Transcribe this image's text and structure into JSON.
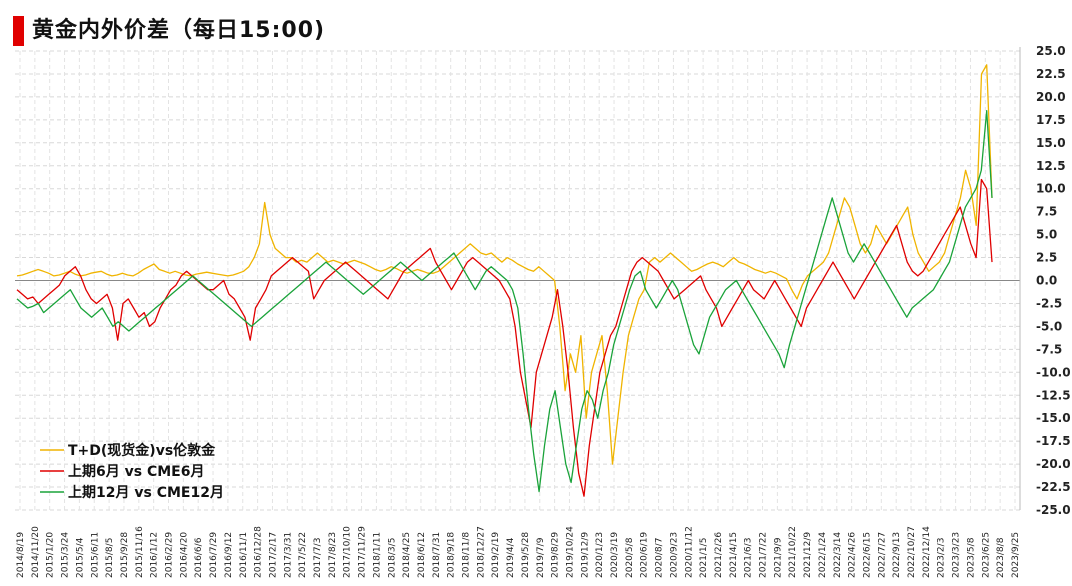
{
  "chart_data": {
    "type": "line",
    "title": "黄金内外价差（每日15:00)",
    "xlabel": "",
    "ylabel": "",
    "ylim": [
      -25,
      25
    ],
    "y_ticks": [
      "25.0",
      "22.5",
      "20.0",
      "17.5",
      "15.0",
      "12.5",
      "10.0",
      "7.5",
      "5.0",
      "2.5",
      "0.0",
      "-2.5",
      "-5.0",
      "-7.5",
      "-10.0",
      "-12.5",
      "-15.0",
      "-17.5",
      "-20.0",
      "-22.5",
      "-25.0"
    ],
    "x_ticks": [
      "2014/8/19",
      "2014/11/20",
      "2015/1/20",
      "2015/3/24",
      "2015/5/4",
      "2015/6/11",
      "2015/8/5",
      "2015/9/28",
      "2015/11/16",
      "2016/1/12",
      "2016/2/29",
      "2016/4/20",
      "2016/6/6",
      "2016/7/29",
      "2016/9/12",
      "2016/11/1",
      "2016/12/28",
      "2017/2/17",
      "2017/3/31",
      "2017/5/22",
      "2017/7/3",
      "2017/8/23",
      "2017/10/10",
      "2017/11/29",
      "2018/1/11",
      "2018/3/5",
      "2018/4/25",
      "2018/6/12",
      "2018/7/31",
      "2018/9/18",
      "2018/11/8",
      "2018/12/27",
      "2019/2/19",
      "2019/4/4",
      "2019/5/28",
      "2019/7/9",
      "2019/8/29",
      "2019/10/24",
      "2019/12/9",
      "2020/1/23",
      "2020/3/19",
      "2020/5/8",
      "2020/6/19",
      "2020/8/7",
      "2020/9/23",
      "2020/11/12",
      "2021/1/5",
      "2021/2/26",
      "2021/4/15",
      "2021/6/3",
      "2021/7/22",
      "2021/9/9",
      "2021/10/22",
      "2021/12/9",
      "2022/1/24",
      "2022/3/14",
      "2022/4/26",
      "2022/6/15",
      "2022/7/27",
      "2022/9/13",
      "2022/10/27",
      "2022/12/14",
      "2023/2/3",
      "2023/3/23",
      "2023/5/8",
      "2023/6/25",
      "2023/8/8",
      "2023/9/25"
    ],
    "grid": true,
    "legend_position": "bottom-left",
    "series": [
      {
        "name": "T+D(现货金)vs伦敦金",
        "color": "#f0b400",
        "values": [
          0.5,
          0.6,
          0.8,
          1.0,
          1.2,
          1.0,
          0.8,
          0.5,
          0.6,
          0.8,
          1.0,
          0.7,
          0.5,
          0.6,
          0.8,
          0.9,
          1.0,
          0.7,
          0.5,
          0.6,
          0.8,
          0.6,
          0.5,
          0.8,
          1.2,
          1.5,
          1.8,
          1.2,
          1.0,
          0.8,
          1.0,
          0.8,
          0.6,
          0.5,
          0.7,
          0.8,
          0.9,
          0.8,
          0.7,
          0.6,
          0.5,
          0.6,
          0.8,
          1.0,
          1.5,
          2.5,
          4.0,
          8.5,
          5.0,
          3.5,
          3.0,
          2.5,
          2.5,
          2.0,
          2.2,
          2.0,
          2.5,
          3.0,
          2.5,
          2.0,
          2.2,
          2.0,
          1.8,
          2.0,
          2.2,
          2.0,
          1.8,
          1.5,
          1.2,
          1.0,
          1.2,
          1.5,
          1.3,
          1.0,
          0.8,
          1.0,
          1.2,
          1.0,
          0.8,
          0.8,
          1.0,
          1.5,
          2.0,
          2.5,
          3.0,
          3.5,
          4.0,
          3.5,
          3.0,
          2.8,
          3.0,
          2.5,
          2.0,
          2.5,
          2.2,
          1.8,
          1.5,
          1.2,
          1.0,
          1.5,
          1.0,
          0.5,
          0.0,
          -5,
          -12,
          -8,
          -10,
          -6,
          -15,
          -10,
          -8,
          -6,
          -12,
          -20,
          -15,
          -10,
          -6,
          -4,
          -2,
          -1,
          2.0,
          2.5,
          2.0,
          2.5,
          3.0,
          2.5,
          2.0,
          1.5,
          1.0,
          1.2,
          1.5,
          1.8,
          2.0,
          1.8,
          1.5,
          2.0,
          2.5,
          2.0,
          1.8,
          1.5,
          1.2,
          1.0,
          0.8,
          1.0,
          0.8,
          0.5,
          0.2,
          -1.0,
          -2.0,
          -0.5,
          0.5,
          1.0,
          1.5,
          2.0,
          3.0,
          5.0,
          7.0,
          9.0,
          8.0,
          6.0,
          4.0,
          3.0,
          4.0,
          6.0,
          5.0,
          4.0,
          5.0,
          6.0,
          7.0,
          8.0,
          5.0,
          3.0,
          2.0,
          1.0,
          1.5,
          2.0,
          3.0,
          5.0,
          7.0,
          9.0,
          12.0,
          10.0,
          6.0,
          22.5,
          23.5,
          9.0
        ]
      },
      {
        "name": "上期6月 vs CME6月",
        "color": "#e00000",
        "values": [
          -1.0,
          -1.5,
          -2.0,
          -1.8,
          -2.5,
          -2.0,
          -1.5,
          -1.0,
          -0.5,
          0.5,
          1.0,
          1.5,
          0.5,
          -1.0,
          -2.0,
          -2.5,
          -2.0,
          -1.5,
          -3.0,
          -6.5,
          -2.5,
          -2.0,
          -3.0,
          -4.0,
          -3.5,
          -5.0,
          -4.5,
          -3.0,
          -2.0,
          -1.0,
          -0.5,
          0.5,
          1.0,
          0.5,
          0.0,
          -0.5,
          -1.0,
          -1.0,
          -0.5,
          0.0,
          -1.5,
          -2.0,
          -3.0,
          -4.0,
          -6.5,
          -3.0,
          -2.0,
          -1.0,
          0.5,
          1.0,
          1.5,
          2.0,
          2.5,
          2.0,
          1.5,
          1.0,
          -2.0,
          -1.0,
          0.0,
          0.5,
          1.0,
          1.5,
          2.0,
          1.5,
          1.0,
          0.5,
          0.0,
          -0.5,
          -1.0,
          -1.5,
          -2.0,
          -1.0,
          0.0,
          1.0,
          1.5,
          2.0,
          2.5,
          3.0,
          3.5,
          2.0,
          1.0,
          0.0,
          -1.0,
          0.0,
          1.0,
          2.0,
          2.5,
          2.0,
          1.5,
          1.0,
          0.5,
          0.0,
          -1.0,
          -2.0,
          -5,
          -10,
          -13,
          -16,
          -10,
          -8,
          -6,
          -4,
          -1,
          -5,
          -10,
          -16,
          -21,
          -23.5,
          -18,
          -14,
          -10,
          -8,
          -6,
          -5,
          -3,
          -1,
          1,
          2,
          2.5,
          2.0,
          1.5,
          1.0,
          0.0,
          -1.0,
          -2.0,
          -1.5,
          -1.0,
          -0.5,
          0.0,
          0.5,
          -1.0,
          -2.0,
          -3.0,
          -5.0,
          -4.0,
          -3.0,
          -2.0,
          -1.0,
          0.0,
          -1.0,
          -1.5,
          -2.0,
          -1.0,
          0.0,
          -1.0,
          -2.0,
          -3.0,
          -4.0,
          -5.0,
          -3.0,
          -2.0,
          -1.0,
          0.0,
          1.0,
          2.0,
          1.0,
          0.0,
          -1.0,
          -2.0,
          -1.0,
          0.0,
          1.0,
          2.0,
          3.0,
          4.0,
          5.0,
          6.0,
          4.0,
          2.0,
          1.0,
          0.5,
          1.0,
          2.0,
          3.0,
          4.0,
          5.0,
          6.0,
          7.0,
          8.0,
          6.0,
          4.0,
          2.5,
          11.0,
          10.0,
          2.0
        ]
      },
      {
        "name": "上期12月 vs CME12月",
        "color": "#1aa33a",
        "values": [
          -2.0,
          -2.5,
          -3.0,
          -2.8,
          -2.5,
          -3.5,
          -3.0,
          -2.5,
          -2.0,
          -1.5,
          -1.0,
          -2.0,
          -3.0,
          -3.5,
          -4.0,
          -3.5,
          -3.0,
          -4.0,
          -5.0,
          -4.5,
          -5.0,
          -5.5,
          -5.0,
          -4.5,
          -4.0,
          -3.5,
          -3.0,
          -2.5,
          -2.0,
          -1.5,
          -1.0,
          -0.5,
          0.0,
          0.5,
          0.0,
          -0.5,
          -1.0,
          -1.5,
          -2.0,
          -2.5,
          -3.0,
          -3.5,
          -4.0,
          -4.5,
          -5.0,
          -4.5,
          -4.0,
          -3.5,
          -3.0,
          -2.5,
          -2.0,
          -1.5,
          -1.0,
          -0.5,
          0.0,
          0.5,
          1.0,
          1.5,
          2.0,
          1.5,
          1.0,
          0.5,
          0.0,
          -0.5,
          -1.0,
          -1.5,
          -1.0,
          -0.5,
          0.0,
          0.5,
          1.0,
          1.5,
          2.0,
          1.5,
          1.0,
          0.5,
          0.0,
          0.5,
          1.0,
          1.5,
          2.0,
          2.5,
          3.0,
          2.0,
          1.0,
          0.0,
          -1.0,
          0.0,
          1.0,
          1.5,
          1.0,
          0.5,
          0.0,
          -1.0,
          -3.0,
          -8,
          -14,
          -19,
          -23,
          -18,
          -14,
          -12,
          -16,
          -20,
          -22,
          -18,
          -14,
          -12,
          -13,
          -15,
          -12,
          -10,
          -7,
          -5,
          -3,
          -1,
          0.5,
          1,
          -1,
          -2,
          -3,
          -2,
          -1,
          0,
          -1,
          -3,
          -5,
          -7,
          -8,
          -6,
          -4,
          -3,
          -2,
          -1,
          -0.5,
          0.0,
          -1.0,
          -2.0,
          -3.0,
          -4.0,
          -5.0,
          -6.0,
          -7.0,
          -8.0,
          -9.5,
          -7.0,
          -5.0,
          -3.0,
          -1.0,
          1.0,
          3.0,
          5.0,
          7.0,
          9.0,
          7.0,
          5.0,
          3.0,
          2.0,
          3.0,
          4.0,
          3.0,
          2.0,
          1.0,
          0.0,
          -1.0,
          -2.0,
          -3.0,
          -4.0,
          -3.0,
          -2.5,
          -2.0,
          -1.5,
          -1.0,
          0.0,
          1.0,
          2.0,
          4.0,
          6.0,
          8.0,
          9.0,
          10.0,
          12.0,
          18.5,
          9.0
        ]
      }
    ]
  }
}
